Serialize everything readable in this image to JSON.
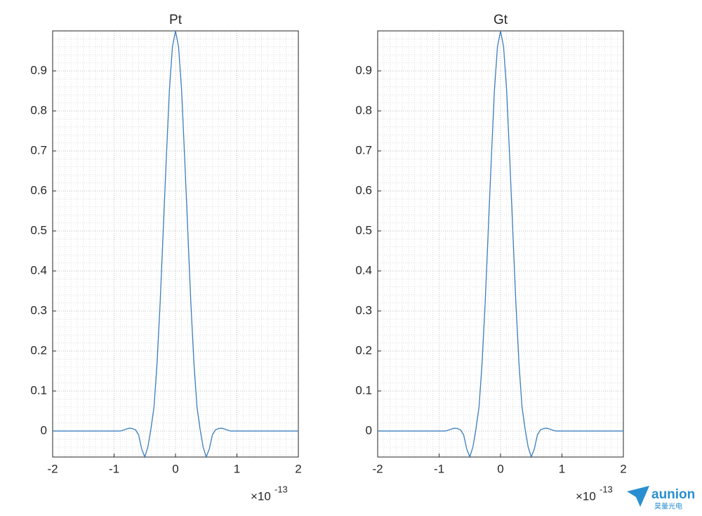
{
  "chart_data": [
    {
      "type": "line",
      "title": "Pt",
      "x": [
        -2,
        -1,
        -0.95,
        -0.9,
        -0.85,
        -0.8,
        -0.75,
        -0.7,
        -0.65,
        -0.6,
        -0.55,
        -0.5,
        -0.45,
        -0.4,
        -0.35,
        -0.3,
        -0.25,
        -0.2,
        -0.15,
        -0.1,
        -0.05,
        0,
        0.05,
        0.1,
        0.15,
        0.2,
        0.25,
        0.3,
        0.35,
        0.4,
        0.45,
        0.5,
        0.55,
        0.6,
        0.65,
        0.7,
        0.75,
        0.8,
        0.85,
        0.9,
        0.95,
        1,
        2
      ],
      "series": [
        {
          "color": "#3c7dbd",
          "values": [
            0,
            0,
            0,
            0,
            0.002,
            0.005,
            0.007,
            0.006,
            0.003,
            -0.01,
            -0.045,
            -0.065,
            -0.04,
            0.005,
            0.06,
            0.17,
            0.32,
            0.5,
            0.68,
            0.85,
            0.96,
            1,
            0.96,
            0.85,
            0.68,
            0.5,
            0.32,
            0.17,
            0.06,
            0.005,
            -0.04,
            -0.065,
            -0.045,
            -0.01,
            0.003,
            0.006,
            0.007,
            0.005,
            0.002,
            0,
            0,
            0,
            0
          ]
        }
      ],
      "xlim": [
        -2,
        2
      ],
      "xticks": [
        -2,
        -1,
        0,
        1,
        2
      ],
      "ylim": [
        -0.065,
        1
      ],
      "yticks": [
        0,
        0.1,
        0.2,
        0.3,
        0.4,
        0.5,
        0.6,
        0.7,
        0.8,
        0.9
      ],
      "x_multiplier": {
        "base": "×10",
        "exponent": "-13"
      },
      "grid": true,
      "minor_grid": true
    },
    {
      "type": "line",
      "title": "Gt",
      "x": [
        -2,
        -1,
        -0.95,
        -0.9,
        -0.85,
        -0.8,
        -0.75,
        -0.7,
        -0.65,
        -0.6,
        -0.55,
        -0.5,
        -0.45,
        -0.4,
        -0.35,
        -0.3,
        -0.25,
        -0.2,
        -0.15,
        -0.1,
        -0.05,
        0,
        0.05,
        0.1,
        0.15,
        0.2,
        0.25,
        0.3,
        0.35,
        0.4,
        0.45,
        0.5,
        0.55,
        0.6,
        0.65,
        0.7,
        0.75,
        0.8,
        0.85,
        0.9,
        0.95,
        1,
        2
      ],
      "series": [
        {
          "color": "#3c7dbd",
          "values": [
            0,
            0,
            0,
            0,
            0.002,
            0.005,
            0.007,
            0.006,
            0.003,
            -0.01,
            -0.045,
            -0.065,
            -0.04,
            0.005,
            0.06,
            0.17,
            0.32,
            0.5,
            0.68,
            0.85,
            0.96,
            1,
            0.96,
            0.85,
            0.68,
            0.5,
            0.32,
            0.17,
            0.06,
            0.005,
            -0.04,
            -0.065,
            -0.045,
            -0.01,
            0.003,
            0.006,
            0.007,
            0.005,
            0.002,
            0,
            0,
            0,
            0
          ]
        }
      ],
      "xlim": [
        -2,
        2
      ],
      "xticks": [
        -2,
        -1,
        0,
        1,
        2
      ],
      "ylim": [
        -0.065,
        1
      ],
      "yticks": [
        0,
        0.1,
        0.2,
        0.3,
        0.4,
        0.5,
        0.6,
        0.7,
        0.8,
        0.9
      ],
      "x_multiplier": {
        "base": "×10",
        "exponent": "-13"
      },
      "grid": true,
      "minor_grid": true
    }
  ],
  "watermark": {
    "text": "aunion",
    "subtext": "昊量光电"
  }
}
